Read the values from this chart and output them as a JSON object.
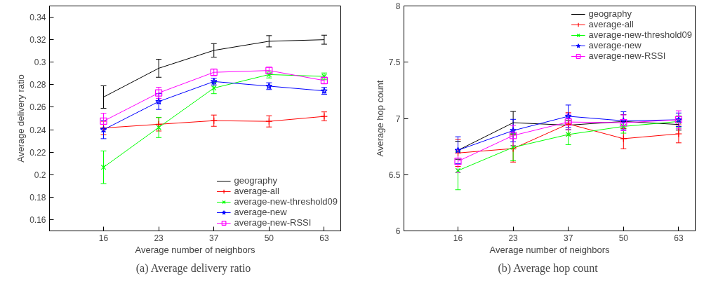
{
  "chart_data": [
    {
      "type": "line",
      "ylabel": "Average delivery ratio",
      "xlabel": "Average number of neighbors",
      "categories": [
        "16",
        "23",
        "37",
        "50",
        "63"
      ],
      "ylim": [
        0.15,
        0.35
      ],
      "yticks": [
        0.16,
        0.18,
        0.2,
        0.22,
        0.24,
        0.26,
        0.28,
        0.3,
        0.32,
        0.34
      ],
      "grid": false,
      "legend": "bottom right",
      "annotations": [
        "(a)  Average delivery ratio"
      ],
      "series": [
        {
          "name": "geography",
          "color": "#000000",
          "marker": "none",
          "values": [
            0.269,
            0.2946,
            0.3105,
            0.3186,
            0.32
          ],
          "errors": [
            0.01,
            0.008,
            0.006,
            0.005,
            0.004
          ]
        },
        {
          "name": "average-all",
          "color": "#ff0000",
          "marker": "cross",
          "values": [
            0.2415,
            0.2448,
            0.248,
            0.2474,
            0.2518
          ],
          "errors": [
            0.006,
            0.006,
            0.005,
            0.005,
            0.004
          ]
        },
        {
          "name": "average-new-threshold09",
          "color": "#00ff00",
          "marker": "x",
          "values": [
            0.2066,
            0.242,
            0.277,
            0.289,
            0.2874
          ],
          "errors": [
            0.0145,
            0.009,
            0.005,
            0.003,
            0.003
          ]
        },
        {
          "name": "average-new",
          "color": "#0000ff",
          "marker": "star",
          "values": [
            0.24,
            0.265,
            0.2828,
            0.2787,
            0.2745
          ],
          "errors": [
            0.008,
            0.007,
            0.003,
            0.003,
            0.003
          ]
        },
        {
          "name": "average-new-RSSI",
          "color": "#ff00ff",
          "marker": "square",
          "values": [
            0.2476,
            0.2727,
            0.291,
            0.2926,
            0.2837
          ],
          "errors": [
            0.007,
            0.005,
            0.003,
            0.003,
            0.003
          ]
        }
      ]
    },
    {
      "type": "line",
      "ylabel": "Average hop count",
      "xlabel": "Average number of neighbors",
      "categories": [
        "16",
        "23",
        "37",
        "50",
        "63"
      ],
      "ylim": [
        6,
        8
      ],
      "yticks": [
        6,
        6.5,
        7,
        7.5,
        8
      ],
      "grid": false,
      "legend": "top right",
      "annotations": [
        "(b)  Average hop count"
      ],
      "series": [
        {
          "name": "geography",
          "color": "#000000",
          "marker": "none",
          "values": [
            6.717,
            6.962,
            6.94,
            6.973,
            6.946
          ],
          "errors": [
            0.08,
            0.1,
            0.04,
            0.06,
            0.05
          ]
        },
        {
          "name": "average-all",
          "color": "#ff0000",
          "marker": "cross",
          "values": [
            6.693,
            6.732,
            6.951,
            6.82,
            6.863
          ],
          "errors": [
            0.12,
            0.12,
            0.1,
            0.09,
            0.08
          ]
        },
        {
          "name": "average-new-threshold09",
          "color": "#00ff00",
          "marker": "x",
          "values": [
            6.536,
            6.743,
            6.857,
            6.929,
            6.973
          ],
          "errors": [
            0.17,
            0.12,
            0.09,
            0.06,
            0.05
          ]
        },
        {
          "name": "average-new",
          "color": "#0000ff",
          "marker": "star",
          "values": [
            6.717,
            6.892,
            7.019,
            6.979,
            6.988
          ],
          "errors": [
            0.12,
            0.1,
            0.1,
            0.08,
            0.06
          ]
        },
        {
          "name": "average-new-RSSI",
          "color": "#ff00ff",
          "marker": "square",
          "values": [
            6.619,
            6.848,
            6.968,
            6.962,
            6.988
          ],
          "errors": [
            0.1,
            0.09,
            0.07,
            0.07,
            0.08
          ]
        }
      ]
    }
  ]
}
